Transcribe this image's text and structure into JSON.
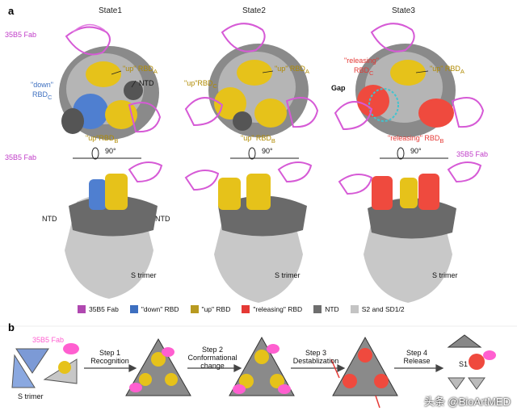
{
  "panel_a": {
    "letter": "a",
    "states": [
      "State1",
      "State2",
      "State3"
    ],
    "fab_label": "35B5 Fab",
    "s1": {
      "down_rbd_line1": "\"down\"",
      "down_rbd_line2": "RBD",
      "down_rbd_sub": "C",
      "up_rbd_a": "\"up\" RBD",
      "up_rbd_a_sub": "A",
      "ntd": "NTD",
      "up_rbd_b": "\"up\"RBD",
      "up_rbd_b_sub": "B"
    },
    "s2": {
      "up_rbd_c": "\"up\"RBD",
      "up_rbd_c_sub": "C",
      "up_rbd_a": "\"up\" RBD",
      "up_rbd_a_sub": "A",
      "up_rbd_b": "\"up\" RBD",
      "up_rbd_b_sub": "B"
    },
    "s3": {
      "releasing_line1": "\"releasing\"",
      "releasing_line2": "RBD",
      "releasing_sub": "C",
      "gap": "Gap",
      "up_rbd_a": "\"up\" RBD",
      "up_rbd_a_sub": "A",
      "releasing_b": "\"releasing\" RBD",
      "releasing_b_sub": "B"
    },
    "rotation": "90°",
    "side_ntd": "NTD",
    "s_trimer": "S trimer"
  },
  "legend": [
    {
      "label": "35B5 Fab",
      "color": "#b048b0"
    },
    {
      "label": "\"down\" RBD",
      "color": "#3d6fc0"
    },
    {
      "label": "\"up\" RBD",
      "color": "#b89a20"
    },
    {
      "label": "\"releasing\" RBD",
      "color": "#e53935"
    },
    {
      "label": "NTD",
      "color": "#6e6e6e"
    },
    {
      "label": "S2 and SD1/2",
      "color": "#c4c4c4"
    }
  ],
  "panel_b": {
    "letter": "b",
    "fab_label": "35B5 Fab",
    "s_trimer": "S trimer",
    "steps": [
      {
        "line1": "Step 1",
        "line2": "Recognition"
      },
      {
        "line1": "Step 2",
        "line2": "Conformational",
        "line3": "change"
      },
      {
        "line1": "Step 3",
        "line2": "Destablization"
      },
      {
        "line1": "Step 4",
        "line2": "Release"
      }
    ],
    "s1_label": "S1"
  },
  "watermark": "头条 @BioArtMED"
}
